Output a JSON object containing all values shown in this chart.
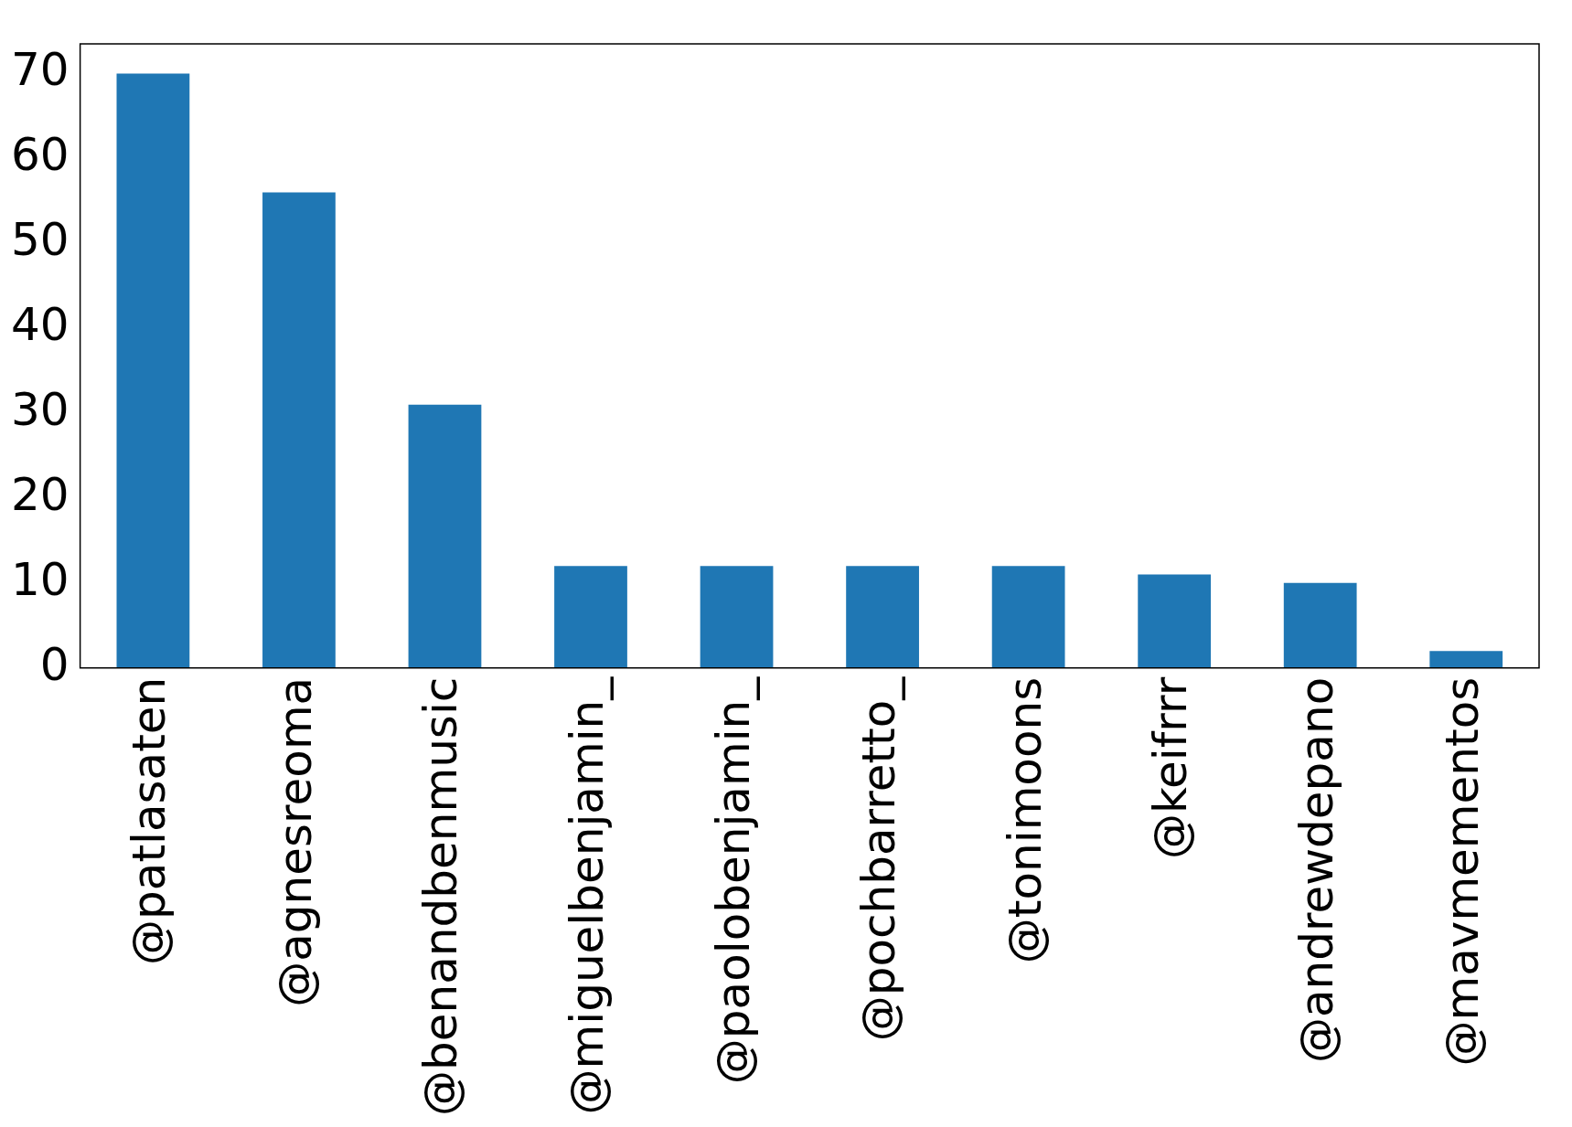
{
  "chart_data": {
    "type": "bar",
    "categories": [
      "@patlasaten",
      "@agnesreoma",
      "@benandbenmusic",
      "@miguelbenjamin_",
      "@paolobenjamin_",
      "@pochbarretto_",
      "@tonimoons",
      "@keifrrr",
      "@andrewdepano",
      "@mavmementos"
    ],
    "values": [
      70,
      56,
      31,
      12,
      12,
      12,
      12,
      11,
      10,
      2
    ],
    "color": "#1f77b4",
    "ylim": [
      0,
      73.5
    ],
    "yticks": [
      0,
      10,
      20,
      30,
      40,
      50,
      60,
      70
    ],
    "grid": false,
    "legend": false
  }
}
